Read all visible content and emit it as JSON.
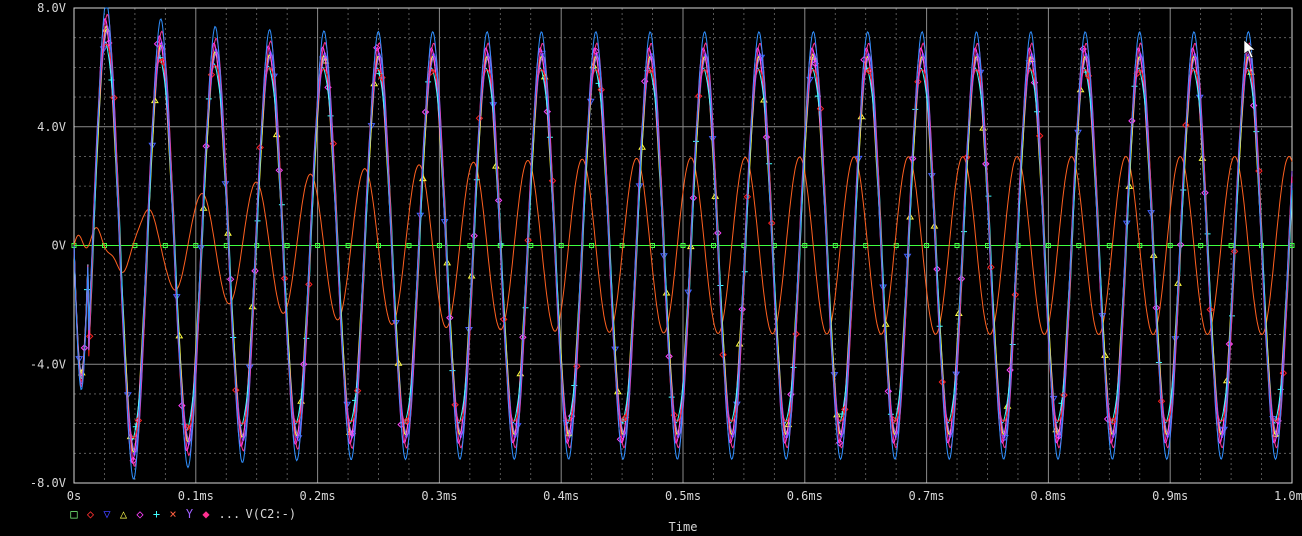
{
  "chart_data": {
    "type": "line",
    "xlabel": "Time",
    "ylabel": "",
    "xlim": [
      0,
      1.0
    ],
    "ylim": [
      -8,
      8
    ],
    "x_unit": "ms",
    "y_unit": "V",
    "x_ticks": [
      {
        "value": 0.0,
        "label": "0s"
      },
      {
        "value": 0.1,
        "label": "0.1ms"
      },
      {
        "value": 0.2,
        "label": "0.2ms"
      },
      {
        "value": 0.3,
        "label": "0.3ms"
      },
      {
        "value": 0.4,
        "label": "0.4ms"
      },
      {
        "value": 0.5,
        "label": "0.5ms"
      },
      {
        "value": 0.6,
        "label": "0.6ms"
      },
      {
        "value": 0.7,
        "label": "0.7ms"
      },
      {
        "value": 0.8,
        "label": "0.8ms"
      },
      {
        "value": 0.9,
        "label": "0.9ms"
      },
      {
        "value": 1.0,
        "label": "1.0ms"
      }
    ],
    "y_ticks": [
      {
        "value": 8,
        "label": "8.0V"
      },
      {
        "value": 4,
        "label": "4.0V"
      },
      {
        "value": 0,
        "label": "0V"
      },
      {
        "value": -4,
        "label": "-4.0V"
      },
      {
        "value": -8,
        "label": "-8.0V"
      }
    ],
    "grid": true,
    "background": "#000000",
    "frequency_khz": 22.4,
    "legend": {
      "placement": "bottom-left",
      "symbols": [
        {
          "symbol": "□",
          "color": "#7fff7f"
        },
        {
          "symbol": "◇",
          "color": "#ff3030"
        },
        {
          "symbol": "▽",
          "color": "#4040ff"
        },
        {
          "symbol": "△",
          "color": "#ffff50"
        },
        {
          "symbol": "◇",
          "color": "#ff40ff"
        },
        {
          "symbol": "+",
          "color": "#40ffff"
        },
        {
          "symbol": "×",
          "color": "#ff6040"
        },
        {
          "symbol": "Y",
          "color": "#a060ff"
        },
        {
          "symbol": "◆",
          "color": "#ff3090"
        }
      ],
      "ellipsis": "...",
      "last_label": "V(C2:-)"
    },
    "series": [
      {
        "color": "#40ff40",
        "marker": "square",
        "kind": "flat",
        "amplitude": 0.0
      },
      {
        "color": "#ff6020",
        "marker": "none",
        "kind": "slow",
        "amplitude": 3.0
      },
      {
        "color": "#4060ff",
        "marker": "triangle-down",
        "kind": "ring",
        "amplitude": 6.2
      },
      {
        "color": "#ffff40",
        "marker": "triangle-up",
        "kind": "ring",
        "amplitude": 6.0
      },
      {
        "color": "#ff40ff",
        "marker": "diamond",
        "kind": "ring",
        "amplitude": 6.4
      },
      {
        "color": "#40ffff",
        "marker": "plus",
        "kind": "ring",
        "amplitude": 6.1
      },
      {
        "color": "#ff2020",
        "marker": "diamond",
        "kind": "ring",
        "amplitude": 6.3
      },
      {
        "color": "#a060ff",
        "marker": "none",
        "kind": "ring",
        "amplitude": 6.5
      },
      {
        "color": "#ff3090",
        "marker": "none",
        "kind": "ring",
        "amplitude": 6.6
      },
      {
        "color": "#3090ff",
        "marker": "none",
        "kind": "ring",
        "amplitude": 6.8
      }
    ]
  }
}
